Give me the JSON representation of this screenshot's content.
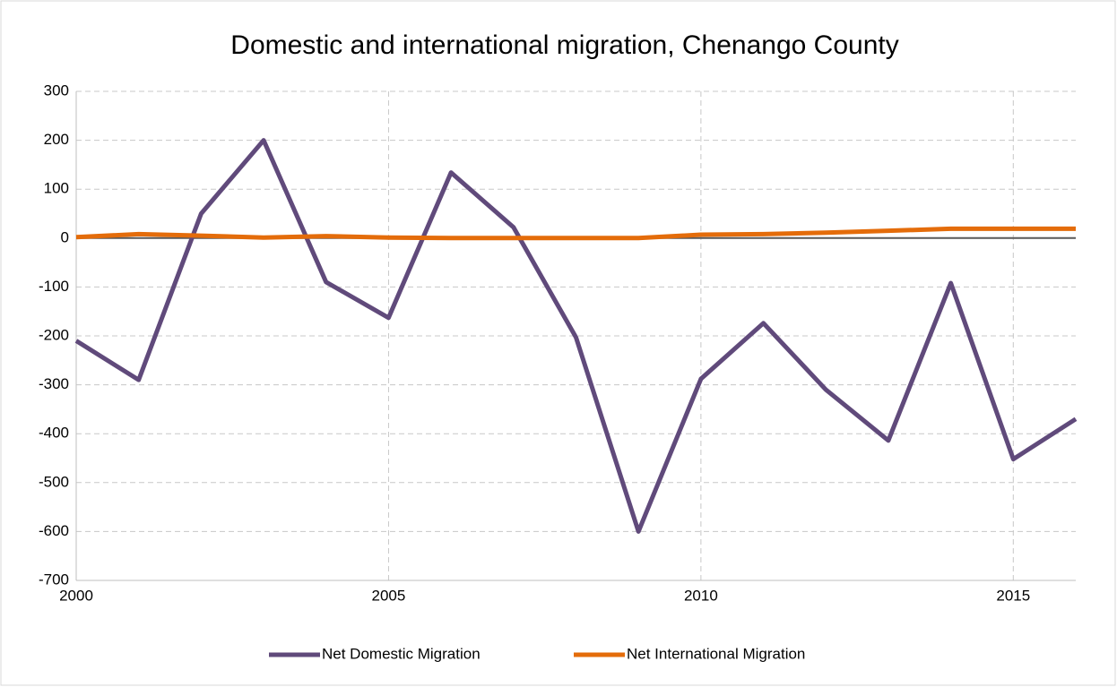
{
  "chart_data": {
    "type": "line",
    "title": "Domestic and international migration, Chenango County",
    "x": [
      2000,
      2001,
      2002,
      2003,
      2004,
      2005,
      2006,
      2007,
      2008,
      2009,
      2010,
      2011,
      2012,
      2013,
      2014,
      2015,
      2016
    ],
    "series": [
      {
        "name": "Net Domestic Migration",
        "color": "#604a7b",
        "values": [
          -210,
          -290,
          50,
          200,
          -90,
          -163,
          134,
          22,
          -203,
          -600,
          -288,
          -174,
          -310,
          -414,
          -92,
          -452,
          -370
        ]
      },
      {
        "name": "Net International Migration",
        "color": "#e46c0a",
        "values": [
          2,
          8,
          5,
          1,
          4,
          1,
          0,
          0,
          0,
          0,
          7,
          8,
          11,
          15,
          19,
          19,
          19
        ]
      }
    ],
    "xlim": [
      2000,
      2016
    ],
    "xticks": [
      2000,
      2005,
      2010,
      2015
    ],
    "ylim": [
      -700,
      300
    ],
    "yticks": [
      -700,
      -600,
      -500,
      -400,
      -300,
      -200,
      -100,
      0,
      100,
      200,
      300
    ],
    "grid": true,
    "legend": "bottom"
  }
}
